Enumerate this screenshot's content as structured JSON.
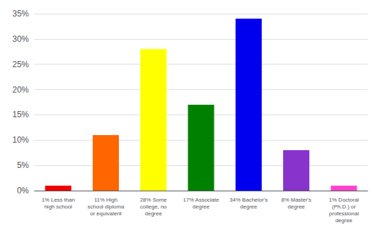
{
  "chart_data": {
    "type": "bar",
    "categories": [
      "1% Less than\nhigh school",
      "11% High\nschool diploma\nor equivalent",
      "28% Some\ncollege, no\ndegree",
      "17% Associate\ndegree",
      "34% Bachelor's\ndegree",
      "8% Master's\ndegree",
      "1% Doctoral\n(Ph.D.) or\nprofessional\ndegree"
    ],
    "values": [
      1,
      11,
      28,
      17,
      34,
      8,
      1
    ],
    "colors": [
      "#ee0000",
      "#ff6600",
      "#ffff00",
      "#008000",
      "#0000ee",
      "#8833cc",
      "#ff44cc"
    ],
    "ylim": [
      0,
      35
    ],
    "yticks": [
      {
        "value": 0,
        "label": "0%"
      },
      {
        "value": 5,
        "label": "5%"
      },
      {
        "value": 10,
        "label": "10%"
      },
      {
        "value": 15,
        "label": "15%"
      },
      {
        "value": 20,
        "label": "20%"
      },
      {
        "value": 25,
        "label": "25%"
      },
      {
        "value": 30,
        "label": "30%"
      },
      {
        "value": 35,
        "label": "35%"
      }
    ],
    "grid": true
  }
}
